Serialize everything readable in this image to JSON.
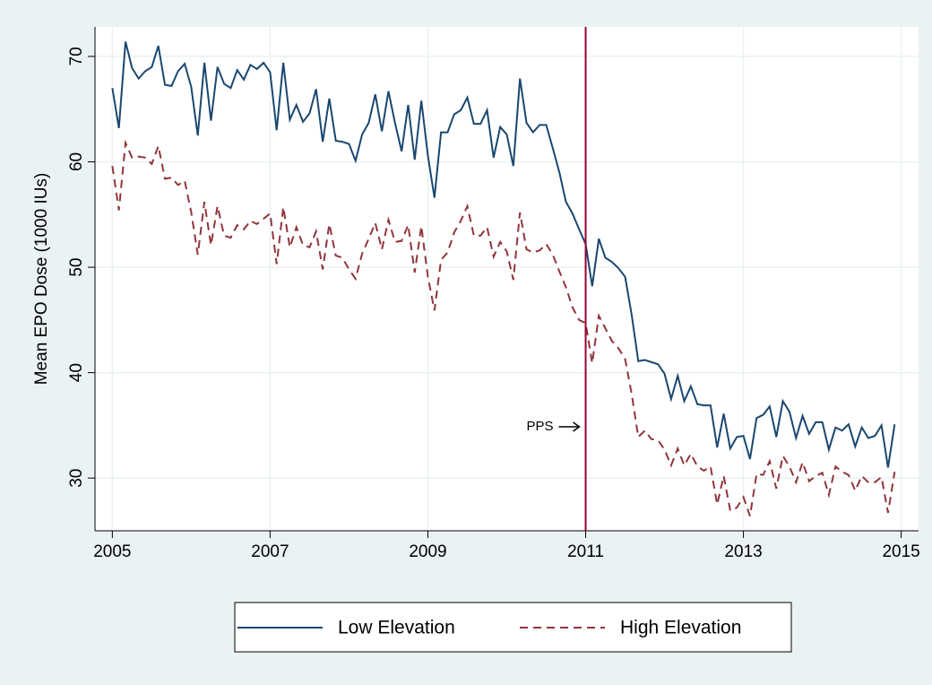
{
  "chart_data": {
    "type": "line",
    "y_label": "Mean EPO Dose (1000 IUs)",
    "x": [
      2005,
      2005.083,
      2005.167,
      2005.25,
      2005.333,
      2005.417,
      2005.5,
      2005.583,
      2005.667,
      2005.75,
      2005.833,
      2005.917,
      2006,
      2006.083,
      2006.167,
      2006.25,
      2006.333,
      2006.417,
      2006.5,
      2006.583,
      2006.667,
      2006.75,
      2006.833,
      2006.917,
      2007,
      2007.083,
      2007.167,
      2007.25,
      2007.333,
      2007.417,
      2007.5,
      2007.583,
      2007.667,
      2007.75,
      2007.833,
      2007.917,
      2008,
      2008.083,
      2008.167,
      2008.25,
      2008.333,
      2008.417,
      2008.5,
      2008.583,
      2008.667,
      2008.75,
      2008.833,
      2008.917,
      2009,
      2009.083,
      2009.167,
      2009.25,
      2009.333,
      2009.417,
      2009.5,
      2009.583,
      2009.667,
      2009.75,
      2009.833,
      2009.917,
      2010,
      2010.083,
      2010.167,
      2010.25,
      2010.333,
      2010.417,
      2010.5,
      2010.583,
      2010.667,
      2010.75,
      2010.833,
      2010.917,
      2011,
      2011.083,
      2011.167,
      2011.25,
      2011.333,
      2011.417,
      2011.5,
      2011.583,
      2011.667,
      2011.75,
      2011.833,
      2011.917,
      2012,
      2012.083,
      2012.167,
      2012.25,
      2012.333,
      2012.417,
      2012.5,
      2012.583,
      2012.667,
      2012.75,
      2012.833,
      2012.917,
      2013,
      2013.083,
      2013.167,
      2013.25,
      2013.333,
      2013.417,
      2013.5,
      2013.583,
      2013.667,
      2013.75,
      2013.833,
      2013.917,
      2014,
      2014.083,
      2014.167,
      2014.25,
      2014.333,
      2014.417,
      2014.5,
      2014.583,
      2014.667,
      2014.75,
      2014.833,
      2014.917
    ],
    "series": [
      {
        "name": "Low Elevation",
        "color": "#1a476f",
        "dash": false,
        "values": [
          67,
          63.2,
          71.4,
          68.9,
          67.9,
          68.6,
          69.0,
          71.0,
          67.3,
          67.2,
          68.6,
          69.3,
          67.1,
          62.5,
          69.4,
          63.9,
          69.0,
          67.4,
          67.0,
          68.7,
          67.8,
          69.2,
          68.8,
          69.4,
          68.5,
          63.0,
          69.4,
          64.0,
          65.4,
          63.8,
          64.6,
          66.9,
          61.9,
          66.0,
          62.0,
          61.9,
          61.7,
          60.1,
          62.6,
          63.7,
          66.4,
          62.9,
          66.7,
          63.7,
          61.0,
          65.4,
          60.2,
          65.8,
          60.6,
          56.6,
          62.8,
          62.8,
          64.5,
          64.9,
          66.1,
          63.6,
          63.6,
          64.9,
          60.4,
          63.3,
          62.6,
          59.6,
          67.9,
          63.7,
          62.8,
          63.5,
          63.5,
          61.3,
          59.0,
          56.2,
          55.1,
          53.6,
          52.2,
          48.2,
          52.7,
          50.9,
          50.5,
          49.9,
          49.1,
          45.5,
          41.1,
          41.2,
          41.0,
          40.8,
          39.9,
          37.5,
          39.7,
          37.3,
          38.7,
          37.0,
          36.9,
          36.9,
          32.9,
          36.1,
          32.8,
          33.9,
          34.0,
          31.8,
          35.7,
          36.0,
          36.8,
          33.9,
          37.3,
          36.3,
          33.8,
          35.9,
          34.2,
          35.3,
          35.3,
          32.7,
          34.8,
          34.5,
          35.1,
          33.0,
          34.8,
          33.8,
          34.0,
          35.0,
          31.0,
          35.1
        ]
      },
      {
        "name": "High Elevation",
        "color": "#90353b",
        "dash": true,
        "values": [
          59.6,
          55.4,
          61.8,
          60.4,
          60.5,
          60.4,
          59.8,
          61.5,
          58.4,
          58.5,
          57.8,
          58.2,
          55.2,
          51.2,
          56.2,
          52.1,
          55.8,
          53.0,
          52.8,
          54.0,
          53.6,
          54.4,
          54.1,
          54.6,
          55.1,
          50.3,
          55.7,
          51.9,
          53.8,
          52.1,
          51.9,
          53.4,
          49.8,
          54.1,
          51.1,
          50.9,
          49.8,
          48.9,
          51.3,
          52.7,
          54.2,
          51.7,
          54.5,
          52.4,
          52.5,
          54.0,
          49.5,
          53.9,
          49.1,
          45.9,
          50.7,
          51.4,
          53.3,
          54.4,
          55.8,
          53.0,
          53.0,
          53.8,
          51.0,
          52.4,
          51.5,
          48.8,
          55.2,
          51.7,
          51.4,
          51.6,
          52.2,
          51.2,
          49.6,
          48.1,
          46.2,
          45.0,
          44.7,
          40.9,
          45.4,
          44.2,
          43.0,
          42.3,
          41.3,
          38.0,
          33.9,
          34.5,
          33.7,
          33.6,
          32.7,
          31.2,
          32.8,
          31.2,
          32.3,
          31.1,
          30.7,
          31.1,
          27.5,
          30.2,
          26.9,
          27.2,
          28.2,
          26.4,
          30.4,
          30.3,
          31.6,
          29.0,
          32.1,
          31.1,
          29.6,
          31.5,
          29.7,
          30.2,
          30.5,
          28.4,
          31.1,
          30.6,
          30.3,
          28.8,
          30.2,
          29.6,
          29.6,
          30.1,
          26.7,
          30.6
        ]
      }
    ],
    "xlim": [
      2004.78,
      2015.22
    ],
    "xticks": [
      2005,
      2007,
      2009,
      2011,
      2013,
      2015
    ],
    "ylim": [
      25,
      72.8
    ],
    "yticks": [
      30,
      40,
      50,
      60,
      70
    ],
    "grid": true,
    "vline": {
      "x": 2011,
      "label": "PPS",
      "color": "#990033"
    },
    "legend": "bottom"
  }
}
